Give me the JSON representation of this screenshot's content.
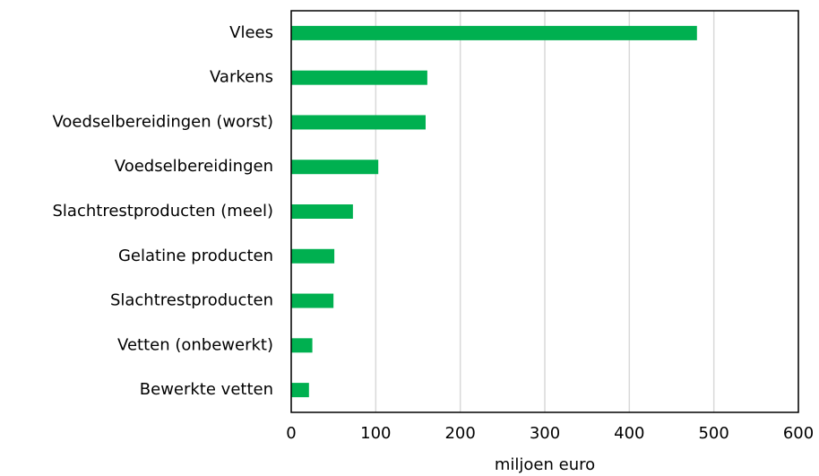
{
  "chart_data": {
    "type": "bar",
    "orientation": "horizontal",
    "categories": [
      "Vlees",
      "Varkens",
      "Voedselbereidingen (worst)",
      "Voedselbereidingen",
      "Slachtrestproducten (meel)",
      "Gelatine producten",
      "Slachtrestproducten",
      "Vetten (onbewerkt)",
      "Bewerkte vetten"
    ],
    "values": [
      480,
      161,
      159,
      103,
      73,
      51,
      50,
      25,
      21
    ],
    "color": "#00b050",
    "xlabel": "miljoen euro",
    "xlim": [
      0,
      600
    ],
    "xticks": [
      0,
      100,
      200,
      300,
      400,
      500,
      600
    ],
    "grid": true
  }
}
